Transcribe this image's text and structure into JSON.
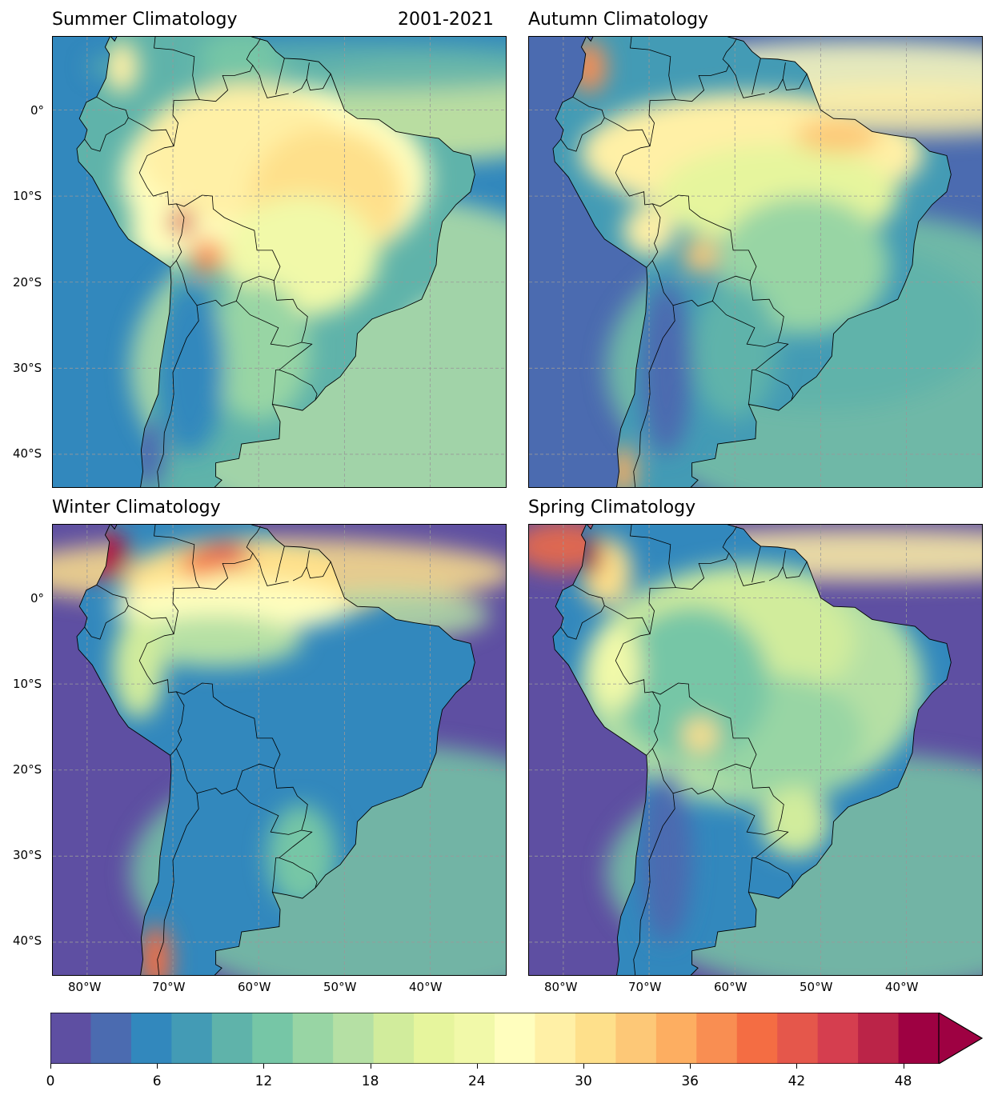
{
  "figure": {
    "period_label": "2001-2021"
  },
  "panels": [
    {
      "id": "summer",
      "title": "Summer Climatology"
    },
    {
      "id": "autumn",
      "title": "Autumn Climatology"
    },
    {
      "id": "winter",
      "title": "Winter Climatology"
    },
    {
      "id": "spring",
      "title": "Spring Climatology"
    }
  ],
  "axes": {
    "lat_ticks": [
      "0°",
      "10°S",
      "20°S",
      "30°S",
      "40°S"
    ],
    "lon_ticks": [
      "80°W",
      "70°W",
      "60°W",
      "50°W",
      "40°W"
    ],
    "lat_values": [
      0,
      -10,
      -20,
      -30,
      -40
    ],
    "lon_values": [
      -80,
      -70,
      -60,
      -50,
      -40
    ],
    "lat_range": [
      -44,
      8.5
    ],
    "lon_range": [
      -84,
      -31
    ],
    "gridlines": "dashed grey"
  },
  "colorbar": {
    "ticks": [
      "0",
      "6",
      "12",
      "18",
      "24",
      "30",
      "36",
      "42",
      "48"
    ],
    "tick_values": [
      0,
      6,
      12,
      18,
      24,
      30,
      36,
      42,
      48
    ],
    "range": [
      0,
      50
    ],
    "extend": "max",
    "colors": [
      "#5e4fa2",
      "#4b6bb0",
      "#3288bd",
      "#439bb5",
      "#5fb3aa",
      "#76c6a6",
      "#98d5a4",
      "#b5e0a4",
      "#d1ec9c",
      "#e6f59d",
      "#f1f9a9",
      "#fffebe",
      "#fff0a6",
      "#fee08b",
      "#fdc877",
      "#fdae61",
      "#f98e52",
      "#f46d43",
      "#e5574b",
      "#d53e4f",
      "#bb2448",
      "#9e0142"
    ],
    "extend_color": "#9e0142",
    "colormap": "Spectral_r"
  }
}
